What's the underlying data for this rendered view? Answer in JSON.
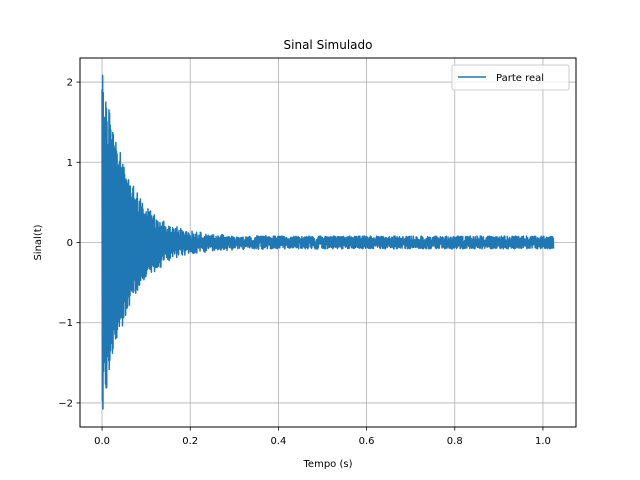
{
  "chart_data": {
    "type": "line",
    "title": "Sinal Simulado",
    "xlabel": "Tempo (s)",
    "ylabel": "Sinal(t)",
    "xlim": [
      -0.05,
      1.075
    ],
    "ylim": [
      -2.3,
      2.3
    ],
    "xticks": [
      0.0,
      0.2,
      0.4,
      0.6,
      0.8,
      1.0
    ],
    "xtick_labels": [
      "0.0",
      "0.2",
      "0.4",
      "0.6",
      "0.8",
      "1.0"
    ],
    "yticks": [
      -2,
      -1,
      0,
      1,
      2
    ],
    "ytick_labels": [
      "−2",
      "−1",
      "0",
      "1",
      "2"
    ],
    "grid": true,
    "legend_position": "top-right",
    "series": [
      {
        "name": "Parte real",
        "color": "#1f77b4",
        "description": "decaying oscillation plus noise",
        "x_range": [
          0.0,
          1.024
        ],
        "envelope": {
          "initial_amplitude": 2.1,
          "decay_time_constant": 0.06,
          "noise_amplitude": 0.08
        }
      }
    ]
  }
}
